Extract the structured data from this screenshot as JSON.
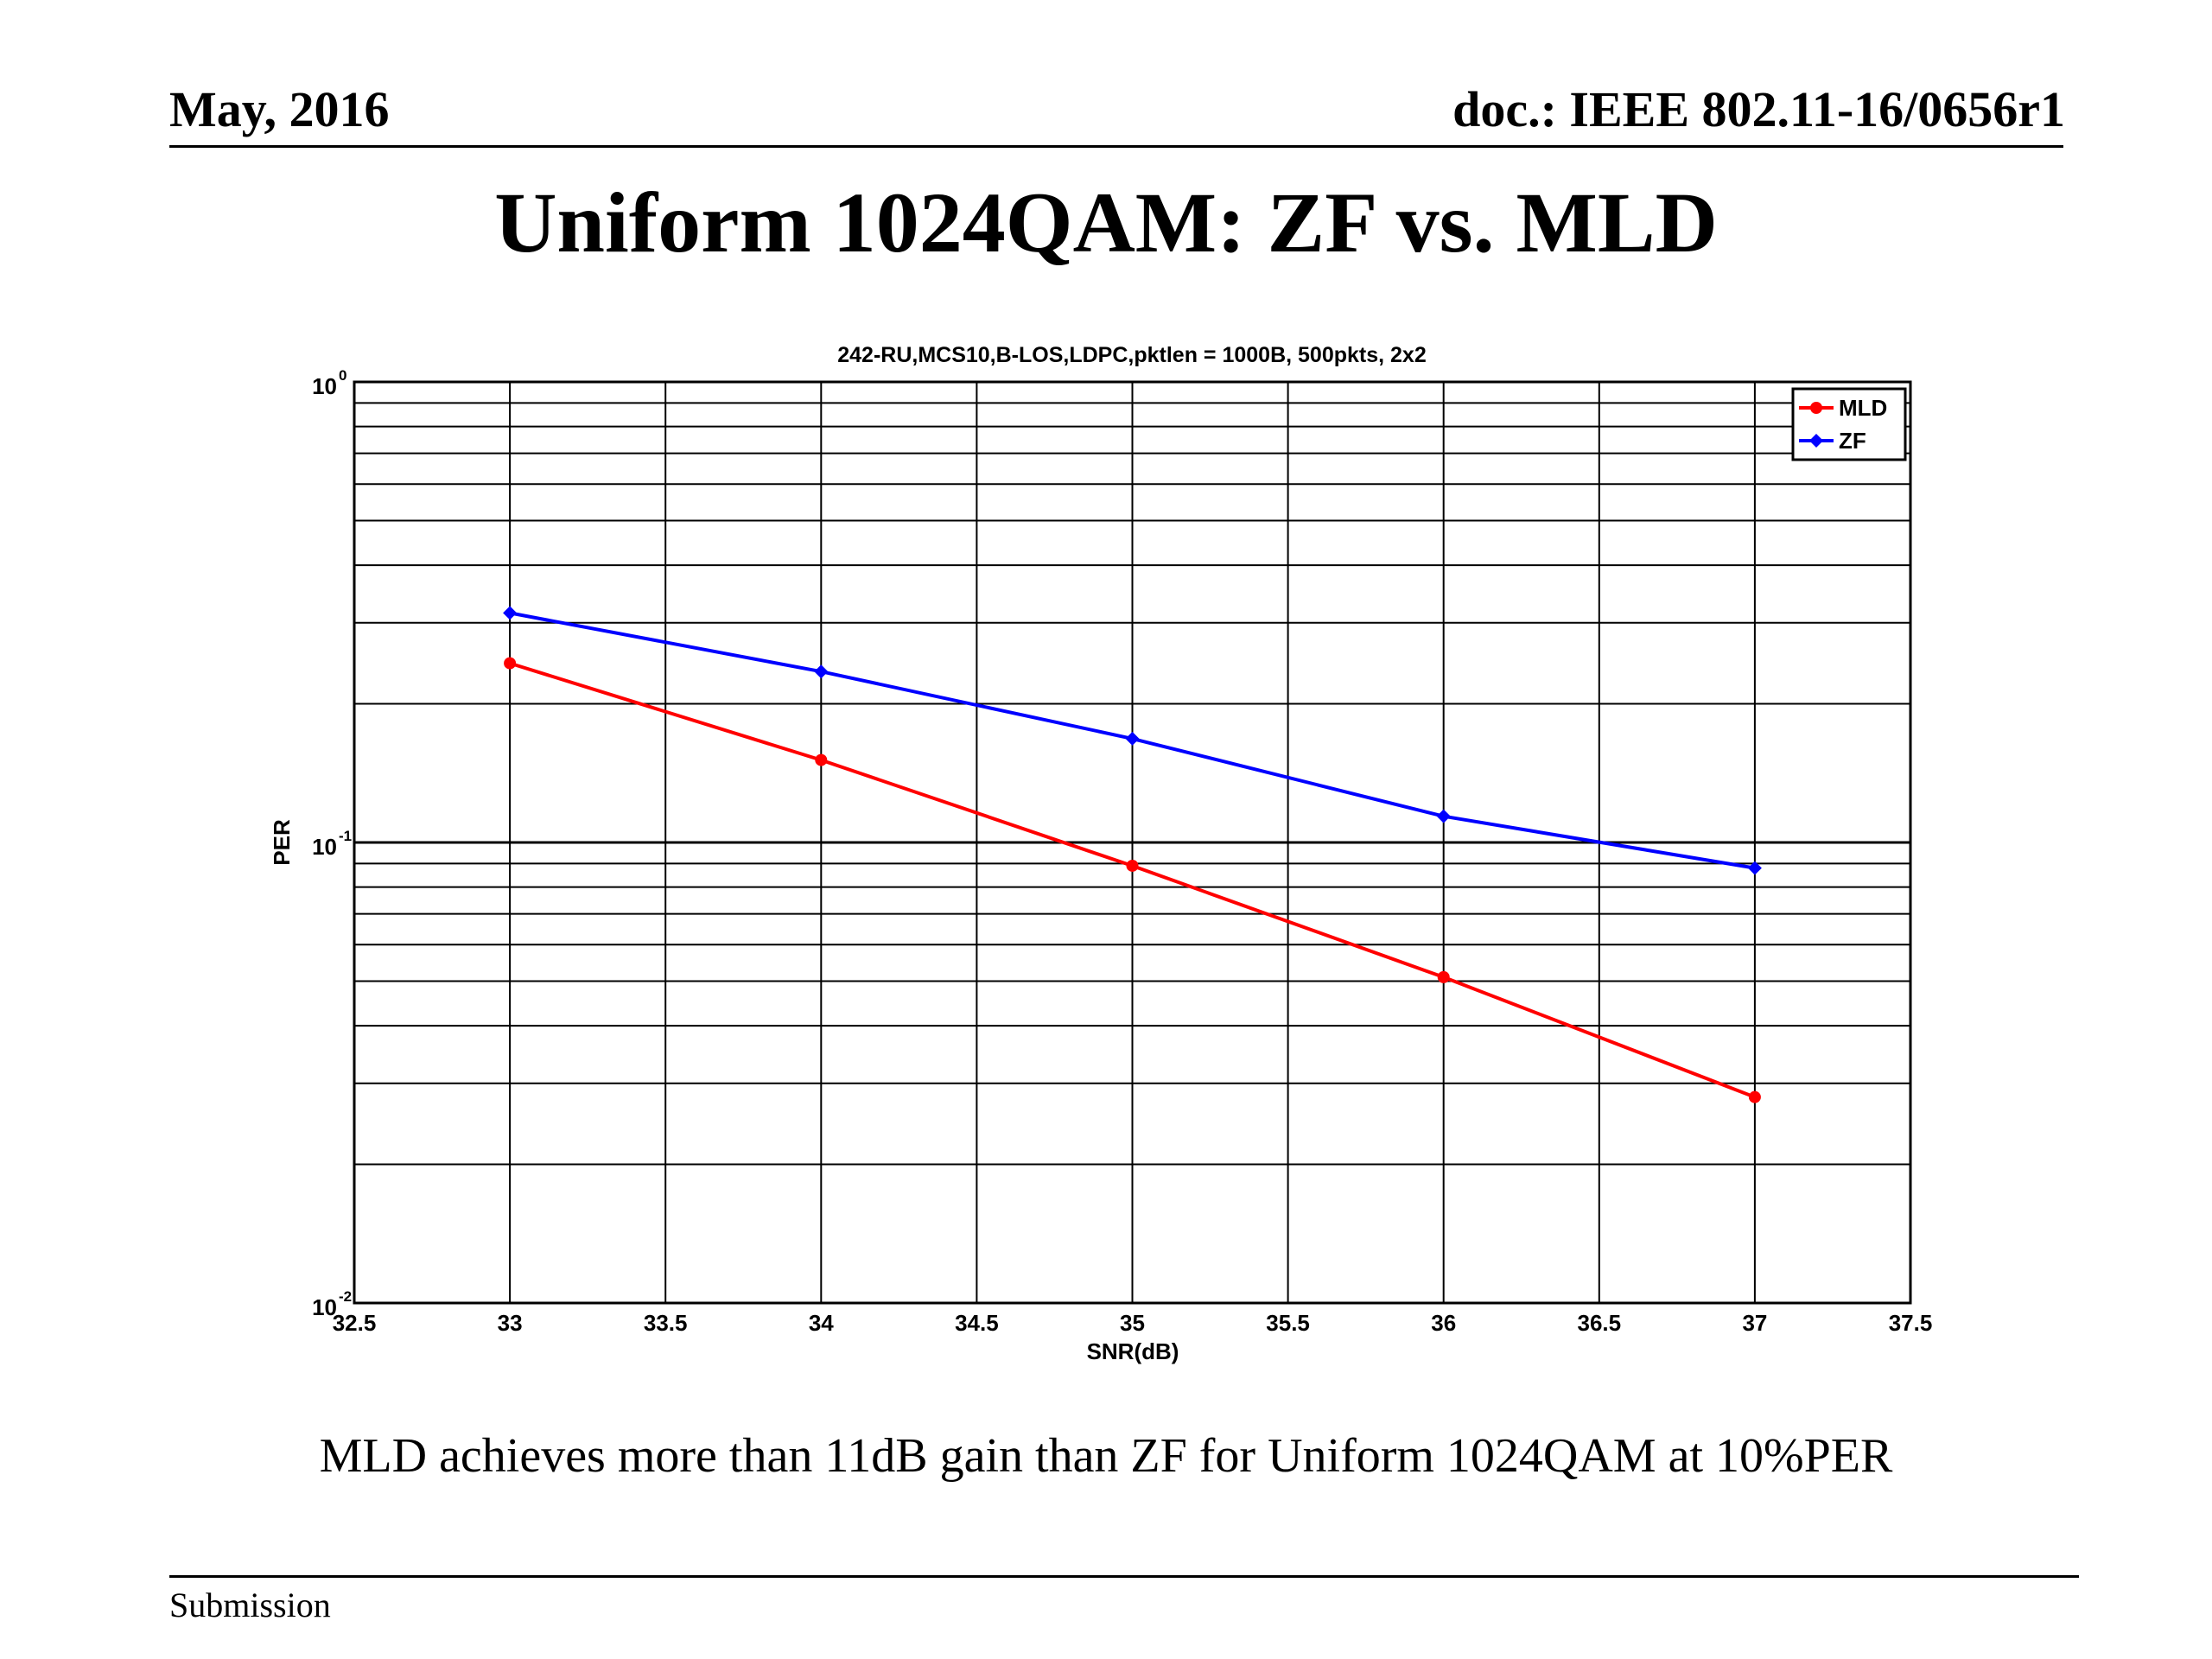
{
  "header": {
    "date": "May, 2016",
    "doc_id": "doc.: IEEE 802.11-16/0656r1"
  },
  "slide_title": "Uniform 1024QAM: ZF vs. MLD",
  "caption": "MLD achieves more than 11dB gain than ZF for Uniform 1024QAM at 10%PER",
  "footer": {
    "label": "Submission"
  },
  "chart_data": {
    "type": "line",
    "title": "242-RU,MCS10,B-LOS,LDPC,pktlen = 1000B, 500pkts, 2x2",
    "xlabel": "SNR(dB)",
    "ylabel": "PER",
    "xlim": [
      32.5,
      37.5
    ],
    "ylim": [
      0.01,
      1
    ],
    "yscale": "log",
    "grid": true,
    "legend_position": "top-right",
    "x_ticks": [
      "32.5",
      "33",
      "33.5",
      "34",
      "34.5",
      "35",
      "35.5",
      "36",
      "36.5",
      "37",
      "37.5"
    ],
    "y_ticks": [
      {
        "base": "10",
        "exp": "0"
      },
      {
        "base": "10",
        "exp": "-1"
      },
      {
        "base": "10",
        "exp": "-2"
      }
    ],
    "series": [
      {
        "name": "MLD",
        "color": "#ff0000",
        "marker": "circle",
        "x": [
          33,
          34,
          35,
          36,
          37
        ],
        "y": [
          0.245,
          0.151,
          0.089,
          0.051,
          0.028
        ]
      },
      {
        "name": "ZF",
        "color": "#0000ff",
        "marker": "diamond",
        "x": [
          33,
          34,
          35,
          36,
          37
        ],
        "y": [
          0.315,
          0.235,
          0.168,
          0.114,
          0.088
        ]
      }
    ]
  }
}
